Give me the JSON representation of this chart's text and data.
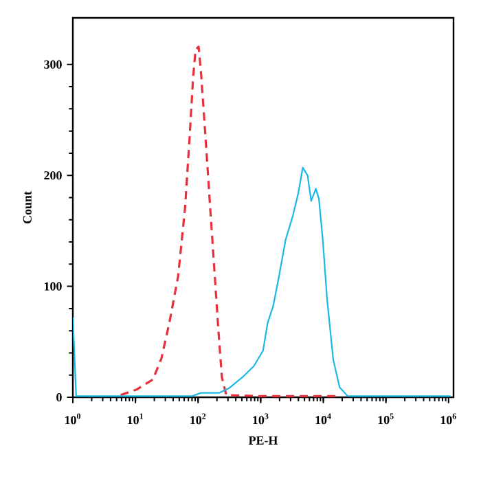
{
  "chart_data": {
    "type": "line",
    "xlabel": "PE-H",
    "ylabel": "Count",
    "log": "x",
    "xlim": [
      1,
      1200000
    ],
    "ylim": [
      0,
      342
    ],
    "xticks": [
      {
        "value": 1,
        "label": "10$^{0}$"
      },
      {
        "value": 10,
        "label": "10$^{1}$"
      },
      {
        "value": 100,
        "label": "10$^{2}$"
      },
      {
        "value": 1000,
        "label": "10$^{3}$"
      },
      {
        "value": 10000,
        "label": "10$^{4}$"
      },
      {
        "value": 100000,
        "label": "10$^{5}$"
      },
      {
        "value": 1000000,
        "label": "10$^{6}$"
      }
    ],
    "yticks": [
      0,
      100,
      200,
      300
    ],
    "grid": false,
    "series": [
      {
        "color": "#e8303c",
        "line_style": "dashed",
        "x": [
          5.8,
          10.5,
          19,
          26,
          35,
          48,
          62,
          73,
          83,
          91,
          102,
          112,
          132,
          156,
          185,
          212,
          240,
          282,
          1000,
          5000,
          17800
        ],
        "values": [
          2,
          7,
          16,
          35,
          68,
          109,
          171,
          233,
          287,
          313,
          316,
          291,
          233,
          171,
          109,
          59,
          18,
          2,
          1,
          1,
          1
        ]
      },
      {
        "color": "#1ab8e6",
        "line_style": "solid",
        "x": [
          1,
          1.13,
          10,
          80,
          112,
          219,
          309,
          510,
          776,
          1090,
          1290,
          1580,
          1960,
          2500,
          3240,
          3980,
          4700,
          5600,
          6400,
          7600,
          8500,
          9800,
          11500,
          14400,
          18200,
          24500,
          100000,
          1070000
        ],
        "values": [
          72,
          1,
          1,
          1,
          4,
          4,
          8,
          18,
          28,
          42,
          67,
          82,
          109,
          142,
          163,
          184,
          207,
          200,
          177,
          188,
          179,
          142,
          88,
          34,
          9,
          1,
          1,
          1
        ]
      }
    ]
  }
}
